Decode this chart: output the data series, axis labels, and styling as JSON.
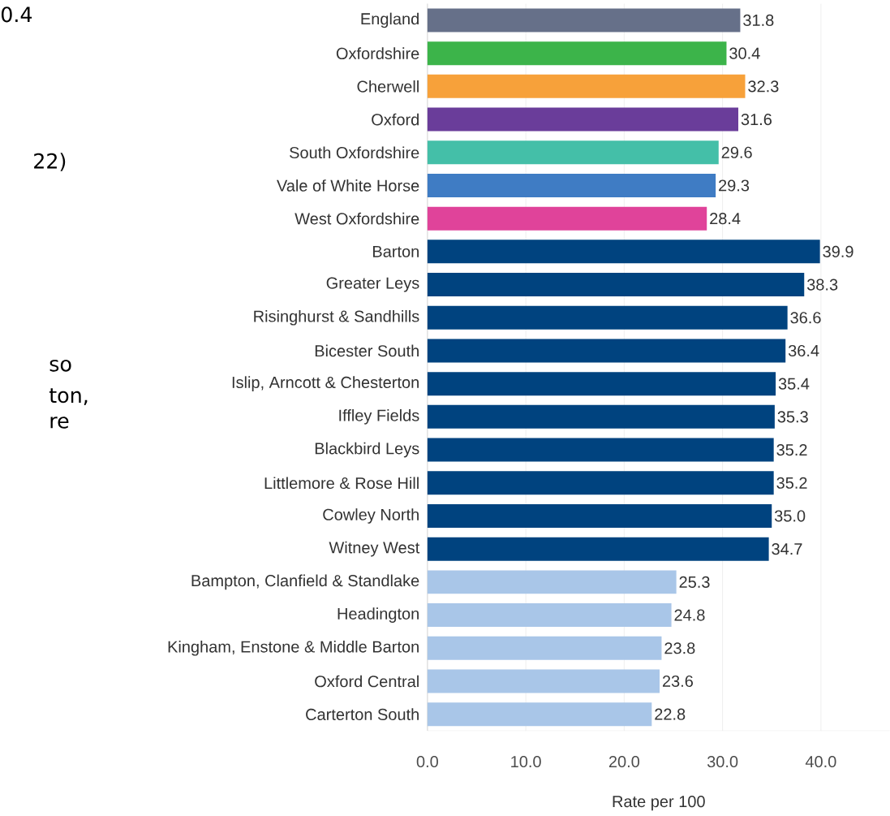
{
  "chart_data": {
    "type": "bar",
    "orientation": "horizontal",
    "xlabel": "Rate per 100",
    "categories": [
      "England",
      "Oxfordshire",
      "Cherwell",
      "Oxford",
      "South Oxfordshire",
      "Vale of White Horse",
      "West Oxfordshire",
      "Barton",
      "Greater Leys",
      "Risinghurst & Sandhills",
      "Bicester South",
      "Islip, Arncott & Chesterton",
      "Iffley Fields",
      "Blackbird Leys",
      "Littlemore & Rose Hill",
      "Cowley North",
      "Witney West",
      "Bampton, Clanfield & Standlake",
      "Headington",
      "Kingham, Enstone & Middle Barton",
      "Oxford Central",
      "Carterton South"
    ],
    "values": [
      31.8,
      30.4,
      32.3,
      31.6,
      29.6,
      29.3,
      28.4,
      39.9,
      38.3,
      36.6,
      36.4,
      35.4,
      35.3,
      35.2,
      35.2,
      35.0,
      34.7,
      25.3,
      24.8,
      23.8,
      23.6,
      22.8
    ],
    "value_labels": [
      "31.8",
      "30.4",
      "32.3",
      "31.6",
      "29.6",
      "29.3",
      "28.4",
      "39.9",
      "38.3",
      "36.6",
      "36.4",
      "35.4",
      "35.3",
      "35.2",
      "35.2",
      "35.0",
      "34.7",
      "25.3",
      "24.8",
      "23.8",
      "23.6",
      "22.8"
    ],
    "colors": [
      "#667089",
      "#3cb44a",
      "#f7a13a",
      "#6a3d9a",
      "#44bfa8",
      "#3f7cc4",
      "#e0439a",
      "#00437f",
      "#00437f",
      "#00437f",
      "#00437f",
      "#00437f",
      "#00437f",
      "#00437f",
      "#00437f",
      "#00437f",
      "#00437f",
      "#a9c6e8",
      "#a9c6e8",
      "#a9c6e8",
      "#a9c6e8",
      "#a9c6e8"
    ],
    "xlim": [
      0,
      47
    ],
    "xticks": [
      {
        "value": 0,
        "label": "0.0"
      },
      {
        "value": 10,
        "label": "10.0"
      },
      {
        "value": 20,
        "label": "20.0"
      },
      {
        "value": 30,
        "label": "30.0"
      },
      {
        "value": 40,
        "label": "40.0"
      }
    ],
    "grid": "x",
    "annotations": [
      "0.4",
      "22)",
      "so",
      "ton,",
      "re"
    ]
  }
}
